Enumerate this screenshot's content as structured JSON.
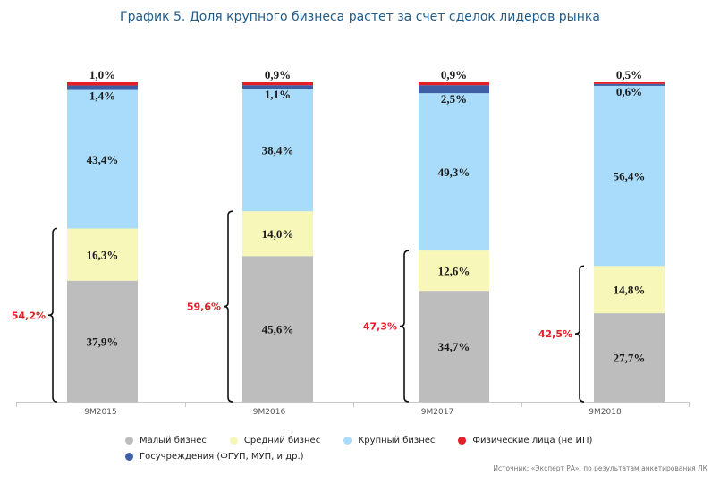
{
  "chart_data": {
    "type": "bar",
    "stacked": true,
    "title": "График 5. Доля крупного бизнеса растет за счет сделок лидеров рынка",
    "categories": [
      "9М2015",
      "9М2016",
      "9М2017",
      "9М2018"
    ],
    "ylim": [
      0,
      100
    ],
    "series": [
      {
        "name": "Малый бизнес",
        "color": "#bdbdbd",
        "values": [
          37.9,
          45.6,
          34.7,
          27.7
        ],
        "labels": [
          "37,9%",
          "45,6%",
          "34,7%",
          "27,7%"
        ]
      },
      {
        "name": "Средний бизнес",
        "color": "#f7f7b9",
        "values": [
          16.3,
          14.0,
          12.6,
          14.8
        ],
        "labels": [
          "16,3%",
          "14,0%",
          "12,6%",
          "14,8%"
        ]
      },
      {
        "name": "Крупный бизнес",
        "color": "#a9dcfb",
        "values": [
          43.4,
          38.4,
          49.3,
          56.4
        ],
        "labels": [
          "43,4%",
          "38,4%",
          "49,3%",
          "56,4%"
        ]
      },
      {
        "name": "Госучреждения (ФГУП, МУП, и др.)",
        "color": "#3e5fa3",
        "values": [
          1.4,
          1.1,
          2.5,
          0.6
        ],
        "labels": [
          "1,4%",
          "1,1%",
          "2,5%",
          "0,6%"
        ]
      },
      {
        "name": "Физические лица (не ИП)",
        "color": "#e31e24",
        "values": [
          1.0,
          0.9,
          0.9,
          0.5
        ],
        "labels": [
          "1,0%",
          "0,9%",
          "0,9%",
          "0,5%"
        ]
      }
    ],
    "brace_totals": {
      "values": [
        54.2,
        59.6,
        47.3,
        42.5
      ],
      "labels": [
        "54,2%",
        "59,6%",
        "47,3%",
        "42,5%"
      ],
      "color": "#e31e24"
    },
    "legend": {
      "position": "bottom",
      "rows": [
        [
          "Малый бизнес",
          "Средний бизнес",
          "Крупный бизнес",
          "Физические лица (не ИП)"
        ],
        [
          "Госучреждения (ФГУП, МУП, и др.)"
        ]
      ]
    },
    "grid": false
  },
  "source": "Источник: «Эксперт РА», по результатам анкетирования ЛК"
}
